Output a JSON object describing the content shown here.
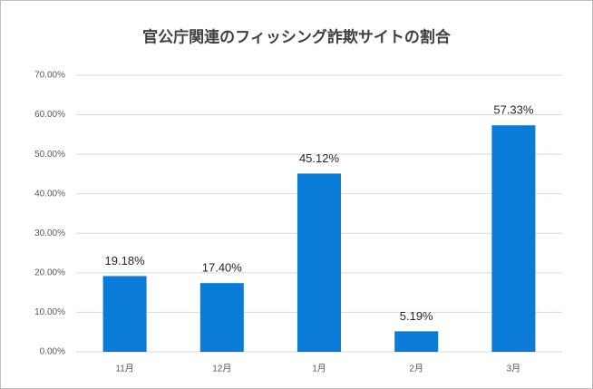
{
  "chart_data": {
    "type": "bar",
    "title": "官公庁関連のフィッシング詐欺サイトの割合",
    "categories": [
      "11月",
      "12月",
      "1月",
      "2月",
      "3月"
    ],
    "values": [
      19.18,
      17.4,
      45.12,
      5.19,
      57.33
    ],
    "value_labels": [
      "19.18%",
      "17.40%",
      "45.12%",
      "5.19%",
      "57.33%"
    ],
    "color": "#0a7bd6",
    "ylim": [
      0,
      70
    ],
    "yticks": [
      {
        "value": 0,
        "label": "0.00%"
      },
      {
        "value": 10,
        "label": "10.00%"
      },
      {
        "value": 20,
        "label": "20.00%"
      },
      {
        "value": 30,
        "label": "30.00%"
      },
      {
        "value": 40,
        "label": "40.00%"
      },
      {
        "value": 50,
        "label": "50.00%"
      },
      {
        "value": 60,
        "label": "60.00%"
      },
      {
        "value": 70,
        "label": "70.00%"
      }
    ],
    "grid": true
  }
}
